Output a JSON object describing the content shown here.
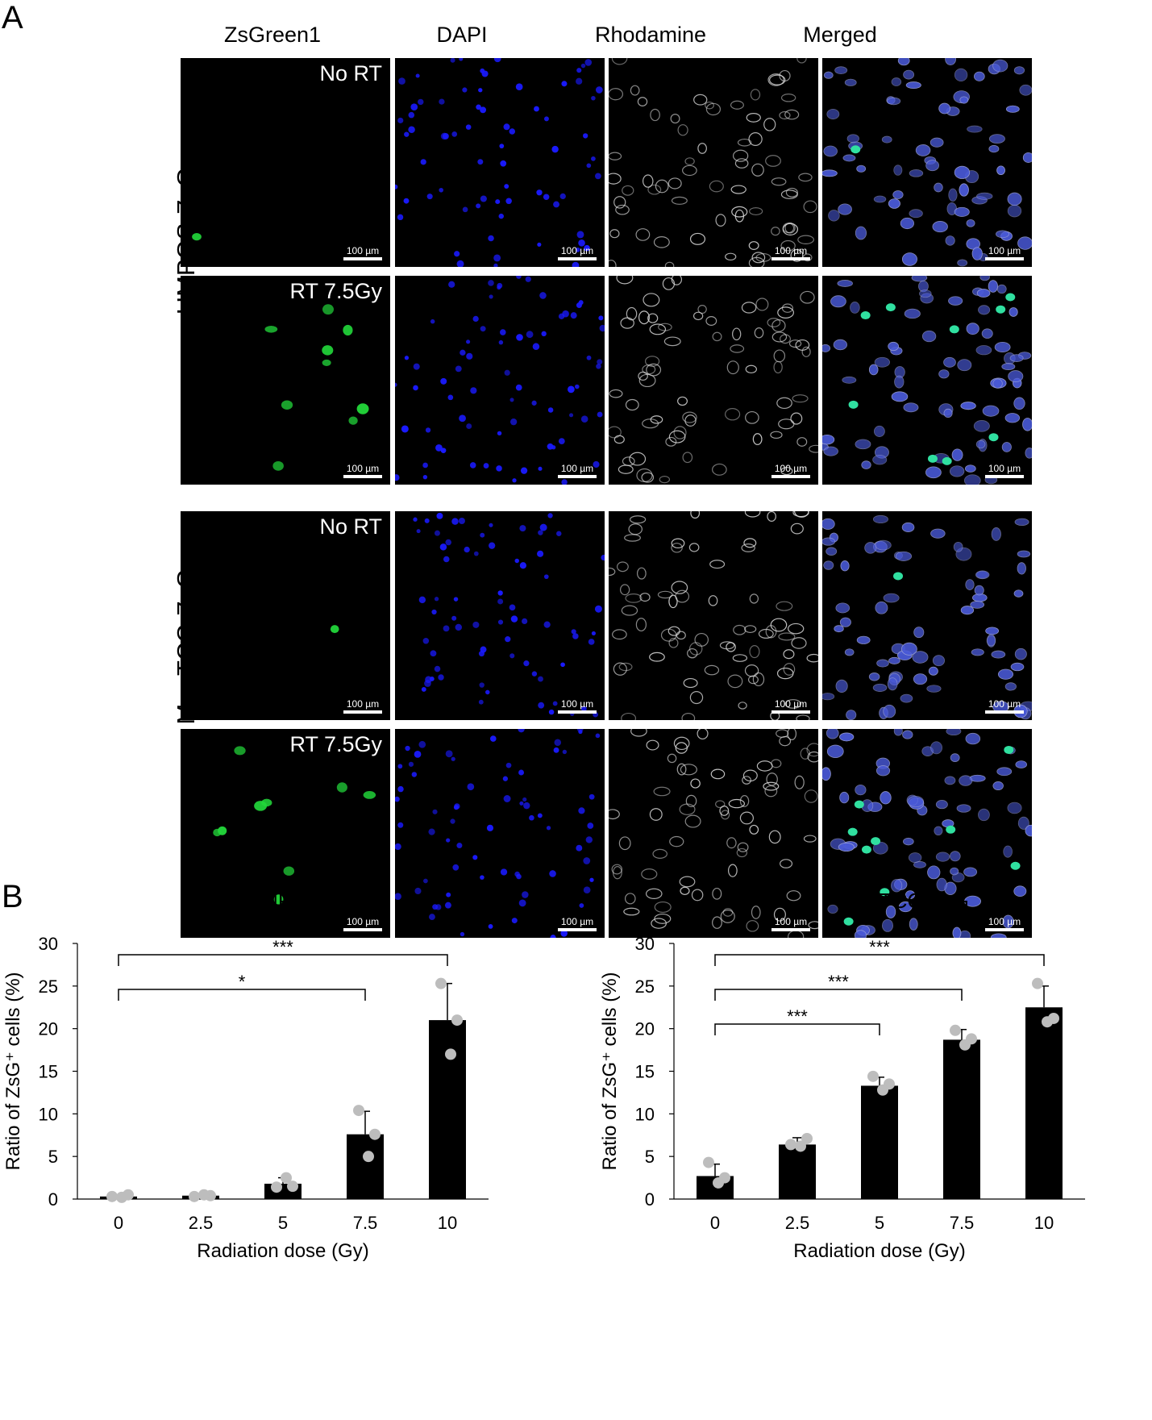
{
  "panel_a": {
    "letter": "A",
    "columns": [
      "ZsGreen1",
      "DAPI",
      "Rhodamine",
      "Merged"
    ],
    "groups": [
      {
        "cell_line": "HMPOS-ZsG",
        "rows": [
          "No RT",
          "RT 7.5Gy"
        ]
      },
      {
        "cell_line": "MegTCC-ZsG",
        "rows": [
          "No RT",
          "RT 7.5Gy"
        ]
      }
    ],
    "scale_bar": "100 µm",
    "channel_colors": {
      "ZsGreen1": "#22d63a",
      "DAPI": "#1a1aff",
      "Rhodamine": "#d8d8d8",
      "Merged": "#4a5ad8"
    }
  },
  "panel_b": {
    "letter": "B"
  },
  "chart_data": [
    {
      "type": "bar",
      "title": "HMPOS-ZsG",
      "xlabel": "Radiation dose (Gy)",
      "ylabel": "Ratio of ZsG⁺ cells (%)",
      "categories": [
        "0",
        "2.5",
        "5",
        "7.5",
        "10"
      ],
      "values": [
        0.3,
        0.4,
        1.8,
        7.6,
        21.0
      ],
      "errors": [
        0.1,
        0.1,
        0.7,
        2.7,
        4.3
      ],
      "points": [
        [
          0.3,
          0.5,
          0.2
        ],
        [
          0.3,
          0.4,
          0.5
        ],
        [
          1.4,
          1.5,
          2.5
        ],
        [
          10.4,
          7.6,
          5.0
        ],
        [
          25.3,
          21.0,
          17.0
        ]
      ],
      "ylim": [
        0,
        30
      ],
      "yticks": [
        0,
        5,
        10,
        15,
        20,
        25,
        30
      ],
      "bar_color": "#000000",
      "point_color": "#bdbdbd",
      "significance": [
        {
          "from": "0",
          "to": "7.5",
          "label": "*"
        },
        {
          "from": "0",
          "to": "10",
          "label": "***"
        }
      ]
    },
    {
      "type": "bar",
      "title": "MegTCC-ZsG",
      "xlabel": "Radiation dose (Gy)",
      "ylabel": "Ratio of ZsG⁺ cells (%)",
      "categories": [
        "0",
        "2.5",
        "5",
        "7.5",
        "10"
      ],
      "values": [
        2.7,
        6.4,
        13.3,
        18.7,
        22.5
      ],
      "errors": [
        1.4,
        0.8,
        1.0,
        1.2,
        2.5
      ],
      "points": [
        [
          4.3,
          2.5,
          1.9
        ],
        [
          6.4,
          7.1,
          6.2
        ],
        [
          14.4,
          13.5,
          12.8
        ],
        [
          19.8,
          18.8,
          18.1
        ],
        [
          25.3,
          21.2,
          20.8
        ]
      ],
      "ylim": [
        0,
        30
      ],
      "yticks": [
        0,
        5,
        10,
        15,
        20,
        25,
        30
      ],
      "bar_color": "#000000",
      "point_color": "#bdbdbd",
      "significance": [
        {
          "from": "0",
          "to": "5",
          "label": "***"
        },
        {
          "from": "0",
          "to": "7.5",
          "label": "***"
        },
        {
          "from": "0",
          "to": "10",
          "label": "***"
        }
      ]
    }
  ]
}
